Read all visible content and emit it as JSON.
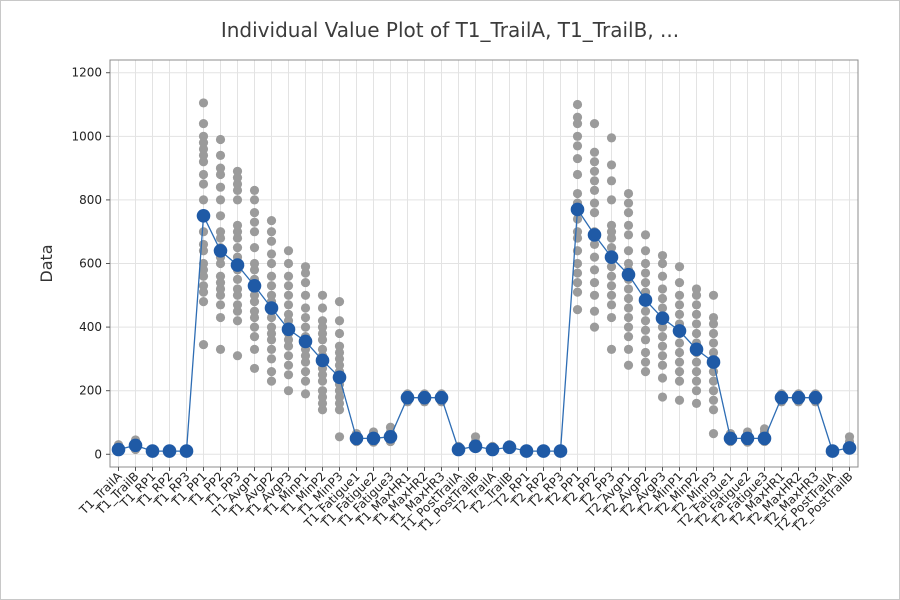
{
  "chart_data": {
    "type": "scatter",
    "title": "Individual Value Plot of T1_TrailA, T1_TrailB, ...",
    "ylabel": "Data",
    "xlabel": "",
    "ylim": [
      -40,
      1240
    ],
    "yticks": [
      0,
      200,
      400,
      600,
      800,
      1000,
      1200
    ],
    "grid": true,
    "legend": "none",
    "colors": {
      "points": "#9b9b9b",
      "mean": "#1f5aa6",
      "line": "#2e6db4",
      "grid": "#e3e3e3"
    },
    "categories": [
      "T1_TrailA",
      "T1_TrailB",
      "T1_RP1",
      "T1_RP2",
      "T1_RP3",
      "T1_PP1",
      "T1_PP2",
      "T1_PP3",
      "T1_AvgP1",
      "T1_AvgP2",
      "T1_AvgP3",
      "T1_MinP1",
      "T1_MinP2",
      "T1_MinP3",
      "T1_Fatigue1",
      "T1_Fatigue2",
      "T1_Fatigue3",
      "T1_MaxHR1",
      "T1_MaxHR2",
      "T1_MaxHR3",
      "T1_PostTrailA",
      "T1_PostTrailB",
      "T2_TrailA",
      "T2_TrailB",
      "T2_RP1",
      "T2_RP2",
      "T2_RP3",
      "T2_PP1",
      "T2_PP2",
      "T2_PP3",
      "T2_AvgP1",
      "T2_AvgP2",
      "T2_AvgP3",
      "T2_MinP1",
      "T2_MinP2",
      "T2_MinP3",
      "T2_Fatigue1",
      "T2_Fatigue2",
      "T2_Fatigue3",
      "T2_MaxHR1",
      "T2_MaxHR2",
      "T2_MaxHR3",
      "T2_PostTrailA",
      "T2_PostTrailB"
    ],
    "means": [
      15,
      28,
      10,
      10,
      10,
      750,
      640,
      595,
      530,
      460,
      393,
      355,
      295,
      242,
      50,
      50,
      55,
      178,
      178,
      178,
      15,
      25,
      15,
      22,
      10,
      10,
      10,
      770,
      690,
      620,
      565,
      485,
      428,
      388,
      330,
      290,
      50,
      50,
      50,
      178,
      178,
      178,
      10,
      20
    ],
    "individual_values": [
      [
        10,
        15,
        20,
        25,
        30
      ],
      [
        15,
        20,
        25,
        30,
        35,
        45
      ],
      [
        5,
        8,
        10,
        12,
        15
      ],
      [
        5,
        8,
        10,
        12,
        15
      ],
      [
        5,
        8,
        10,
        12,
        15
      ],
      [
        345,
        480,
        510,
        530,
        560,
        580,
        600,
        640,
        660,
        700,
        750,
        800,
        850,
        880,
        920,
        940,
        960,
        980,
        1000,
        1040,
        1105
      ],
      [
        330,
        430,
        470,
        500,
        520,
        540,
        560,
        600,
        620,
        650,
        680,
        700,
        750,
        800,
        840,
        880,
        900,
        940,
        990
      ],
      [
        310,
        420,
        450,
        470,
        500,
        520,
        550,
        580,
        600,
        620,
        650,
        680,
        700,
        720,
        800,
        830,
        850,
        870,
        890
      ],
      [
        270,
        330,
        370,
        400,
        430,
        450,
        480,
        500,
        520,
        550,
        580,
        600,
        650,
        700,
        730,
        760,
        800,
        830
      ],
      [
        230,
        260,
        300,
        330,
        360,
        380,
        400,
        430,
        450,
        480,
        500,
        530,
        560,
        600,
        630,
        670,
        700,
        735
      ],
      [
        200,
        250,
        280,
        310,
        340,
        360,
        380,
        400,
        420,
        440,
        470,
        500,
        530,
        560,
        600,
        640
      ],
      [
        190,
        230,
        260,
        290,
        310,
        330,
        350,
        370,
        400,
        430,
        460,
        500,
        540,
        570,
        590
      ],
      [
        140,
        160,
        180,
        200,
        230,
        250,
        270,
        290,
        310,
        330,
        360,
        380,
        400,
        420,
        460,
        500
      ],
      [
        55,
        140,
        160,
        180,
        200,
        220,
        240,
        260,
        280,
        300,
        320,
        340,
        380,
        420,
        480
      ],
      [
        40,
        45,
        50,
        55,
        60,
        65
      ],
      [
        38,
        45,
        50,
        55,
        62,
        70
      ],
      [
        40,
        48,
        55,
        62,
        70,
        85
      ],
      [
        165,
        170,
        175,
        180,
        185,
        190
      ],
      [
        165,
        170,
        175,
        180,
        185,
        190
      ],
      [
        165,
        170,
        175,
        180,
        185,
        190
      ],
      [
        10,
        15,
        20,
        25
      ],
      [
        18,
        25,
        30,
        40,
        55
      ],
      [
        10,
        15,
        20,
        25
      ],
      [
        15,
        20,
        25,
        30
      ],
      [
        5,
        8,
        10,
        12,
        15
      ],
      [
        5,
        8,
        10,
        12,
        15
      ],
      [
        5,
        8,
        10,
        12,
        15
      ],
      [
        455,
        510,
        540,
        570,
        600,
        640,
        680,
        700,
        740,
        790,
        820,
        880,
        930,
        970,
        1000,
        1040,
        1060,
        1100
      ],
      [
        400,
        450,
        500,
        540,
        580,
        620,
        660,
        700,
        760,
        790,
        830,
        860,
        890,
        920,
        950,
        1040
      ],
      [
        330,
        430,
        470,
        500,
        530,
        560,
        590,
        620,
        650,
        680,
        700,
        720,
        800,
        860,
        910,
        995
      ],
      [
        280,
        330,
        370,
        400,
        430,
        460,
        490,
        520,
        550,
        580,
        600,
        640,
        690,
        720,
        760,
        790,
        820
      ],
      [
        260,
        290,
        320,
        360,
        390,
        420,
        450,
        480,
        510,
        540,
        570,
        600,
        640,
        690
      ],
      [
        180,
        240,
        280,
        310,
        340,
        370,
        400,
        430,
        460,
        490,
        520,
        560,
        600,
        625
      ],
      [
        170,
        230,
        260,
        290,
        320,
        350,
        380,
        410,
        440,
        470,
        500,
        540,
        590
      ],
      [
        160,
        200,
        230,
        260,
        290,
        320,
        350,
        380,
        410,
        440,
        470,
        500,
        520
      ],
      [
        65,
        140,
        170,
        200,
        230,
        260,
        290,
        320,
        350,
        380,
        410,
        430,
        500
      ],
      [
        40,
        45,
        50,
        55,
        60,
        65
      ],
      [
        38,
        45,
        50,
        55,
        62,
        70
      ],
      [
        40,
        48,
        55,
        62,
        70,
        80
      ],
      [
        165,
        170,
        175,
        180,
        185,
        190
      ],
      [
        165,
        170,
        175,
        180,
        185,
        190
      ],
      [
        165,
        170,
        175,
        180,
        185,
        190
      ],
      [
        5,
        8,
        10,
        12,
        15
      ],
      [
        15,
        20,
        25,
        30,
        40,
        55
      ]
    ]
  }
}
